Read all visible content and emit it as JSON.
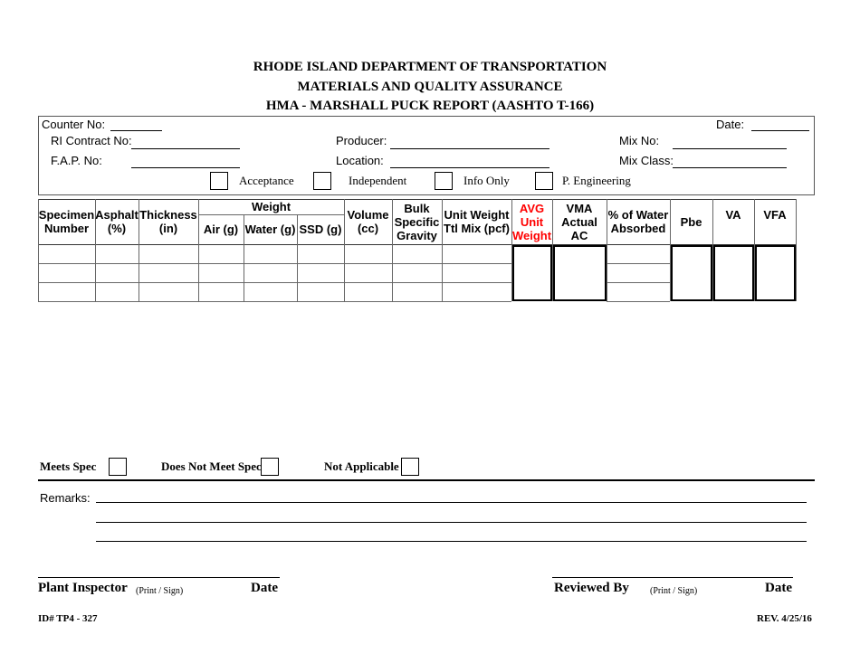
{
  "titles": [
    "RHODE ISLAND DEPARTMENT OF TRANSPORTATION",
    "MATERIALS AND QUALITY ASSURANCE",
    "HMA - MARSHALL PUCK REPORT  (AASHTO T-166)"
  ],
  "info": {
    "counter_no": "Counter No:",
    "date": "Date:",
    "contract_no": "RI Contract No:",
    "producer": "Producer:",
    "mix_no": "Mix No:",
    "fap_no": "F.A.P. No:",
    "location": "Location:",
    "mix_class": "Mix Class:"
  },
  "test_types": [
    "Acceptance",
    "Independent",
    "Info Only",
    "P. Engineering"
  ],
  "table": {
    "weight_group": "Weight",
    "headers": [
      "Specimen Number",
      "Asphalt (%)",
      "Thickness (in)",
      "Air (g)",
      "Water (g)",
      "SSD (g)",
      "Volume (cc)",
      "Bulk Specific Gravity",
      "Unit Weight Ttl Mix (pcf)",
      "AVG Unit Weight",
      "VMA Actual AC",
      "% of Water Absorbed",
      "Pbe",
      "VA",
      "VFA"
    ],
    "accent": "#ff0000"
  },
  "spec": {
    "meets": "Meets Spec",
    "not_meets": "Does Not Meet Spec",
    "na": "Not Applicable"
  },
  "remarks": "Remarks:",
  "signatures": {
    "plant_inspector": "Plant Inspector",
    "print_sign": "(Print / Sign)",
    "date": "Date",
    "reviewed_by": "Reviewed By"
  },
  "footer": {
    "id": "ID# TP4 - 327",
    "rev": "REV. 4/25/16"
  }
}
